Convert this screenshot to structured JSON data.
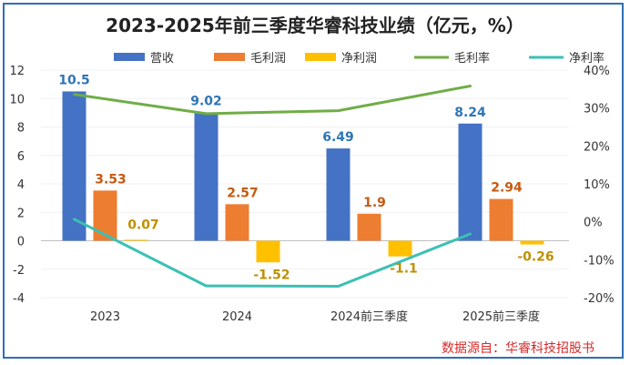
{
  "chart_data": {
    "type": "bar",
    "title": "2023-2025年前三季度华睿科技业绩（亿元，%）",
    "categories": [
      "2023",
      "2024",
      "2024前三季度",
      "2025前三季度"
    ],
    "series": [
      {
        "name": "营收",
        "kind": "bar",
        "axis": "left",
        "color": "#4472C4",
        "label_color": "#2E75B6",
        "values": [
          10.5,
          9.02,
          6.49,
          8.24
        ]
      },
      {
        "name": "毛利润",
        "kind": "bar",
        "axis": "left",
        "color": "#ED7D31",
        "label_color": "#C55A11",
        "values": [
          3.53,
          2.57,
          1.9,
          2.94
        ]
      },
      {
        "name": "净利润",
        "kind": "bar",
        "axis": "left",
        "color": "#FFC000",
        "label_color": "#BF9000",
        "values": [
          0.07,
          -1.52,
          -1.1,
          -0.26
        ]
      },
      {
        "name": "毛利率",
        "kind": "line",
        "axis": "right",
        "color": "#70AD47",
        "values": [
          33.6,
          28.5,
          29.3,
          35.8
        ]
      },
      {
        "name": "净利率",
        "kind": "line",
        "axis": "right",
        "color": "#3CC0B4",
        "values": [
          0.7,
          -16.9,
          -17.0,
          -3.2
        ]
      }
    ],
    "y_left": {
      "min": -4,
      "max": 12,
      "ticks": [
        -4,
        -2,
        0,
        2,
        4,
        6,
        8,
        10,
        12
      ]
    },
    "y_right": {
      "min": -20,
      "max": 40,
      "ticks": [
        -20,
        -10,
        0,
        10,
        20,
        30,
        40
      ],
      "tick_labels": [
        "-20%",
        "-10%",
        "0%",
        "10%",
        "20%",
        "30%",
        "40%"
      ]
    },
    "legend_position": "top",
    "source": "数据源自：华睿科技招股书"
  }
}
